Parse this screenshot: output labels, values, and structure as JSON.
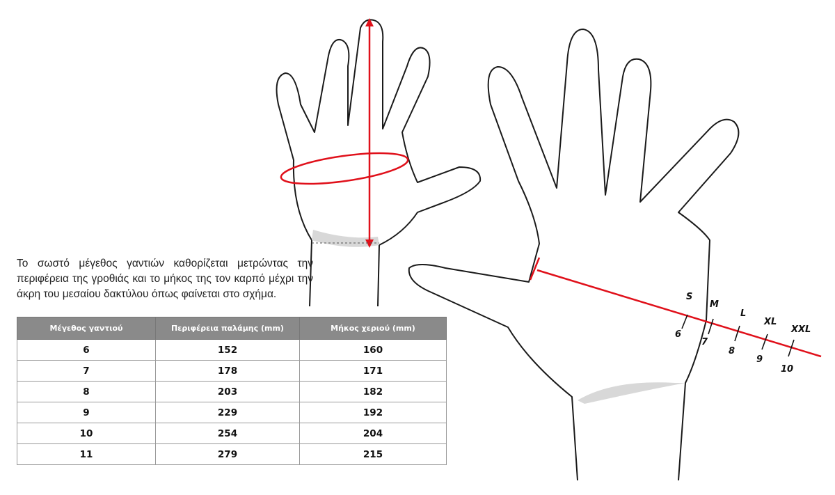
{
  "intro_text": "Το σωστό μέγεθος γαντιών καθορίζεται μετρώντας την περιφέρεια της γροθιάς και το μήκος της τον καρπό μέχρι την άκρη του μεσαίου δακτύλου όπως φαίνεται στο σχήμα.",
  "table": {
    "headers": [
      "Μέγεθος γαντιού",
      "Περιφέρεια παλάμης (mm)",
      "Μήκος χεριού (mm)"
    ],
    "rows": [
      [
        "6",
        "152",
        "160"
      ],
      [
        "7",
        "178",
        "171"
      ],
      [
        "8",
        "203",
        "182"
      ],
      [
        "9",
        "229",
        "192"
      ],
      [
        "10",
        "254",
        "204"
      ],
      [
        "11",
        "279",
        "215"
      ]
    ]
  },
  "scale": {
    "letters": [
      "S",
      "M",
      "L",
      "XL",
      "XXL"
    ],
    "numbers": [
      "6",
      "7",
      "8",
      "9",
      "10"
    ]
  },
  "colors": {
    "accent": "#e0101a",
    "header_bg": "#8a8a8a"
  }
}
